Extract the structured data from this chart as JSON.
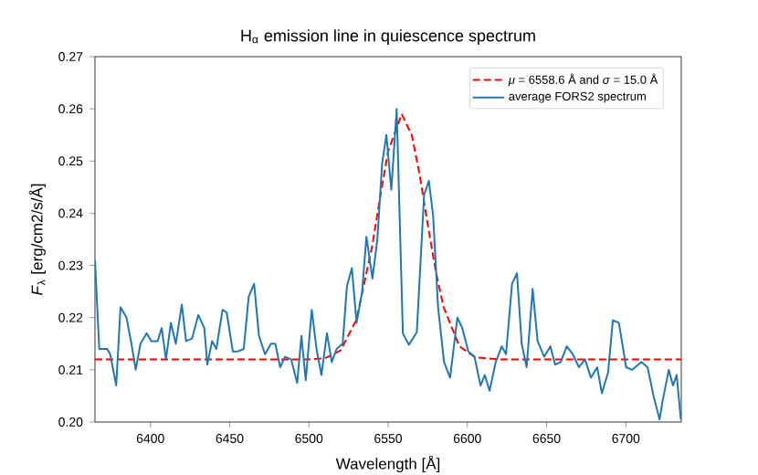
{
  "chart_data": {
    "type": "line",
    "title": "H$_{α}$ emission line in quiescence spectrum",
    "xlabel": "Wavelength [Å]",
    "ylabel": "*F*$_{λ}$ [erg/cm2/s/Å]",
    "xlim": [
      6365,
      6735
    ],
    "ylim": [
      0.2,
      0.27
    ],
    "xticks": [
      6400,
      6450,
      6500,
      6550,
      6600,
      6650,
      6700
    ],
    "yticks": [
      {
        "value": 0.2,
        "label": "0.20"
      },
      0.21,
      0.22,
      0.23,
      0.24,
      0.25,
      0.26,
      0.27
    ],
    "legend": "top right",
    "series": [
      {
        "name": "*μ* = 6558.6 Å and *σ* = 15.0 Å",
        "color": "#ff0000",
        "line_style": "dashed",
        "x": [
          6365,
          6500,
          6510,
          6520,
          6530,
          6540,
          6545,
          6550,
          6558.6,
          6565,
          6570,
          6575,
          6580,
          6585,
          6595,
          6605,
          6620,
          6735
        ],
        "values": [
          0.212,
          0.212,
          0.2122,
          0.2137,
          0.2196,
          0.2338,
          0.2432,
          0.2519,
          0.259,
          0.2549,
          0.2472,
          0.2378,
          0.229,
          0.222,
          0.2145,
          0.2124,
          0.212,
          0.212
        ]
      },
      {
        "name": "average FORS2 spectrum",
        "color": "#1f77b4",
        "line_style": "solid",
        "x": [
          6365.0,
          6367.7,
          6372.7,
          6374.6,
          6378.4,
          6381.1,
          6384.9,
          6388.0,
          6390.7,
          6393.7,
          6397.6,
          6400.6,
          6404.5,
          6407.1,
          6409.8,
          6412.9,
          6416.0,
          6419.8,
          6422.5,
          6426.3,
          6430.2,
          6434.0,
          6435.9,
          6438.9,
          6441.6,
          6445.5,
          6448.1,
          6452.0,
          6455.0,
          6458.9,
          6462.0,
          6465.4,
          6468.5,
          6472.3,
          6476.1,
          6478.8,
          6481.9,
          6484.9,
          6488.8,
          6492.6,
          6495.3,
          6498.0,
          6501.8,
          6504.8,
          6507.9,
          6511.4,
          6514.4,
          6517.5,
          6521.3,
          6524.0,
          6527.1,
          6530.1,
          6533.6,
          6536.3,
          6540.1,
          6543.2,
          6546.2,
          6548.9,
          6552.0,
          6555.4,
          6559.3,
          6563.1,
          6568.1,
          6572.7,
          6575.7,
          6578.4,
          6581.5,
          6585.3,
          6589.1,
          6593.7,
          6596.8,
          6600.6,
          6604.5,
          6608.3,
          6611.0,
          6614.0,
          6617.9,
          6621.7,
          6624.4,
          6628.2,
          6631.3,
          6634.3,
          6637.4,
          6641.2,
          6644.3,
          6648.5,
          6652.4,
          6655.4,
          6658.9,
          6662.7,
          6666.5,
          6670.4,
          6674.2,
          6678.0,
          6681.9,
          6684.9,
          6688.8,
          6691.8,
          6695.6,
          6700.2,
          6704.1,
          6709.8,
          6713.7,
          6717.5,
          6721.3,
          6723.2,
          6727.1,
          6729.8,
          6732.1,
          6734.7
        ],
        "values": [
          0.231,
          0.214,
          0.214,
          0.213,
          0.207,
          0.222,
          0.22,
          0.215,
          0.21,
          0.215,
          0.217,
          0.2155,
          0.2155,
          0.218,
          0.212,
          0.219,
          0.215,
          0.2225,
          0.2155,
          0.216,
          0.2205,
          0.218,
          0.211,
          0.2155,
          0.214,
          0.2215,
          0.221,
          0.2135,
          0.2135,
          0.214,
          0.224,
          0.2265,
          0.2165,
          0.213,
          0.215,
          0.215,
          0.2105,
          0.2125,
          0.212,
          0.2075,
          0.2165,
          0.208,
          0.2215,
          0.214,
          0.209,
          0.217,
          0.2115,
          0.214,
          0.215,
          0.226,
          0.2295,
          0.219,
          0.225,
          0.2355,
          0.2275,
          0.235,
          0.2495,
          0.255,
          0.2445,
          0.26,
          0.217,
          0.2148,
          0.2172,
          0.2435,
          0.2462,
          0.2395,
          0.222,
          0.2115,
          0.2085,
          0.22,
          0.218,
          0.2135,
          0.2125,
          0.207,
          0.209,
          0.206,
          0.2115,
          0.2145,
          0.213,
          0.2265,
          0.2285,
          0.215,
          0.2105,
          0.2255,
          0.2155,
          0.2125,
          0.2145,
          0.211,
          0.2115,
          0.2145,
          0.213,
          0.2105,
          0.212,
          0.2085,
          0.2105,
          0.2055,
          0.2095,
          0.2195,
          0.219,
          0.2105,
          0.21,
          0.2115,
          0.2105,
          0.205,
          0.2005,
          0.204,
          0.21,
          0.207,
          0.209,
          0.2005
        ]
      }
    ]
  }
}
